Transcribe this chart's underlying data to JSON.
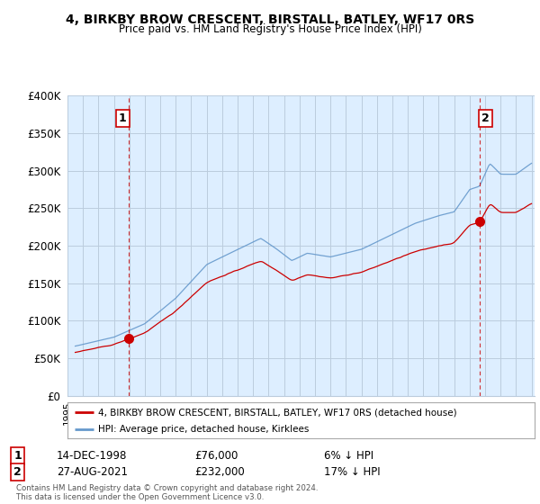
{
  "title": "4, BIRKBY BROW CRESCENT, BIRSTALL, BATLEY, WF17 0RS",
  "subtitle": "Price paid vs. HM Land Registry's House Price Index (HPI)",
  "legend_label_red": "4, BIRKBY BROW CRESCENT, BIRSTALL, BATLEY, WF17 0RS (detached house)",
  "legend_label_blue": "HPI: Average price, detached house, Kirklees",
  "annotation1": {
    "num": "1",
    "date": "14-DEC-1998",
    "price": "£76,000",
    "pct": "6% ↓ HPI"
  },
  "annotation2": {
    "num": "2",
    "date": "27-AUG-2021",
    "price": "£232,000",
    "pct": "17% ↓ HPI"
  },
  "footer": "Contains HM Land Registry data © Crown copyright and database right 2024.\nThis data is licensed under the Open Government Licence v3.0.",
  "red_color": "#cc0000",
  "blue_color": "#6699cc",
  "bg_fill": "#ddeeff",
  "background_color": "#ffffff",
  "grid_color": "#bbccdd",
  "ylim": [
    0,
    400000
  ],
  "yticks": [
    0,
    50000,
    100000,
    150000,
    200000,
    250000,
    300000,
    350000,
    400000
  ],
  "marker1_x": 1998.96,
  "marker1_y": 76000,
  "marker2_x": 2021.65,
  "marker2_y": 232000,
  "x_min": 1995.5,
  "x_max": 2025.2
}
